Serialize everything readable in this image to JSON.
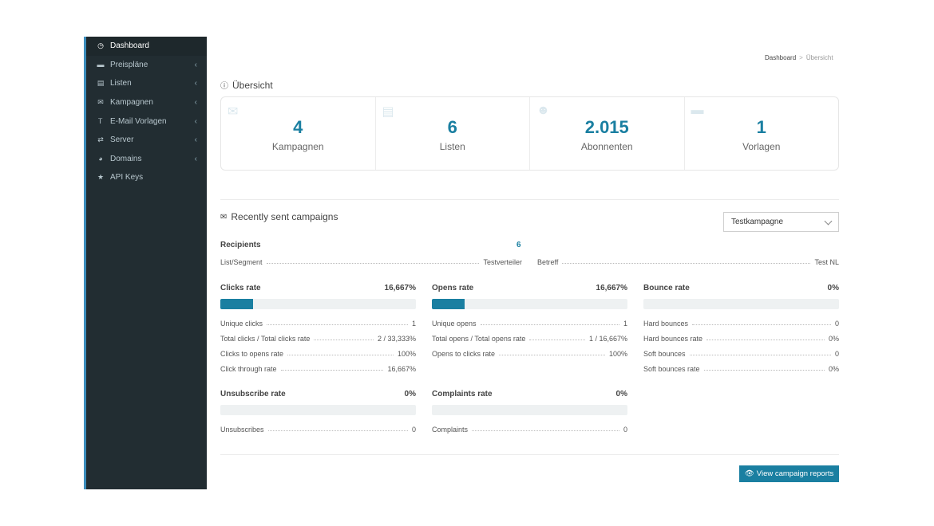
{
  "sidebar": {
    "items": [
      {
        "label": "Dashboard",
        "icon": "dashboard-icon",
        "glyph": "◷",
        "active": true,
        "chevron": false
      },
      {
        "label": "Preispläne",
        "icon": "credit-card-icon",
        "glyph": "▬",
        "chevron": true
      },
      {
        "label": "Listen",
        "icon": "list-icon",
        "glyph": "▤",
        "chevron": true
      },
      {
        "label": "Kampagnen",
        "icon": "envelope-icon",
        "glyph": "✉",
        "chevron": true
      },
      {
        "label": "E-Mail Vorlagen",
        "icon": "text-icon",
        "glyph": "Ꭲ",
        "chevron": true
      },
      {
        "label": "Server",
        "icon": "exchange-icon",
        "glyph": "⇄",
        "chevron": true
      },
      {
        "label": "Domains",
        "icon": "globe-icon",
        "glyph": "◕",
        "chevron": true
      },
      {
        "label": "API Keys",
        "icon": "star-icon",
        "glyph": "★",
        "chevron": false
      }
    ],
    "chevron_glyph": "‹"
  },
  "breadcrumb": {
    "root": "Dashboard",
    "separator": ">",
    "current": "Übersicht"
  },
  "overview": {
    "title": "Übersicht",
    "stats": [
      {
        "value": "4",
        "label": "Kampagnen",
        "icon": "envelope-icon",
        "glyph": "✉"
      },
      {
        "value": "6",
        "label": "Listen",
        "icon": "clipboard-icon",
        "glyph": "▤"
      },
      {
        "value": "2.015",
        "label": "Abonnenten",
        "icon": "users-icon",
        "glyph": "☻"
      },
      {
        "value": "1",
        "label": "Vorlagen",
        "icon": "folder-icon",
        "glyph": "▬"
      }
    ]
  },
  "campaigns": {
    "title": "Recently sent campaigns",
    "select_value": "Testkampagne",
    "recipients_label": "Recipients",
    "recipients_value": "6",
    "list_segment_label": "List/Segment",
    "list_segment_value": "Testverteiler",
    "subject_label": "Betreff",
    "subject_value": "Test NL",
    "clicks": {
      "title": "Clicks rate",
      "rate": "16,667%",
      "fill": 0.16667,
      "rows": [
        {
          "k": "Unique clicks",
          "v": "1"
        },
        {
          "k": "Total clicks / Total clicks rate",
          "v": "2 / 33,333%"
        },
        {
          "k": "Clicks to opens rate",
          "v": "100%"
        },
        {
          "k": "Click through rate",
          "v": "16,667%"
        }
      ]
    },
    "opens": {
      "title": "Opens rate",
      "rate": "16,667%",
      "fill": 0.16667,
      "rows": [
        {
          "k": "Unique opens",
          "v": "1"
        },
        {
          "k": "Total opens / Total opens rate",
          "v": "1 / 16,667%"
        },
        {
          "k": "Opens to clicks rate",
          "v": "100%"
        }
      ]
    },
    "bounces": {
      "title": "Bounce rate",
      "rate": "0%",
      "fill": 0,
      "rows": [
        {
          "k": "Hard bounces",
          "v": "0"
        },
        {
          "k": "Hard bounces rate",
          "v": "0%"
        },
        {
          "k": "Soft bounces",
          "v": "0"
        },
        {
          "k": "Soft bounces rate",
          "v": "0%"
        }
      ]
    },
    "unsubscribe": {
      "title": "Unsubscribe rate",
      "rate": "0%",
      "fill": 0,
      "rows": [
        {
          "k": "Unsubscribes",
          "v": "0"
        }
      ]
    },
    "complaints": {
      "title": "Complaints rate",
      "rate": "0%",
      "fill": 0,
      "rows": [
        {
          "k": "Complaints",
          "v": "0"
        }
      ]
    },
    "button_label": "View campaign reports",
    "button_icon": "eye-icon"
  },
  "colors": {
    "accent": "#1a7fa1",
    "sidebar_bg": "#222d32",
    "sidebar_accent": "#3c8dbc"
  }
}
